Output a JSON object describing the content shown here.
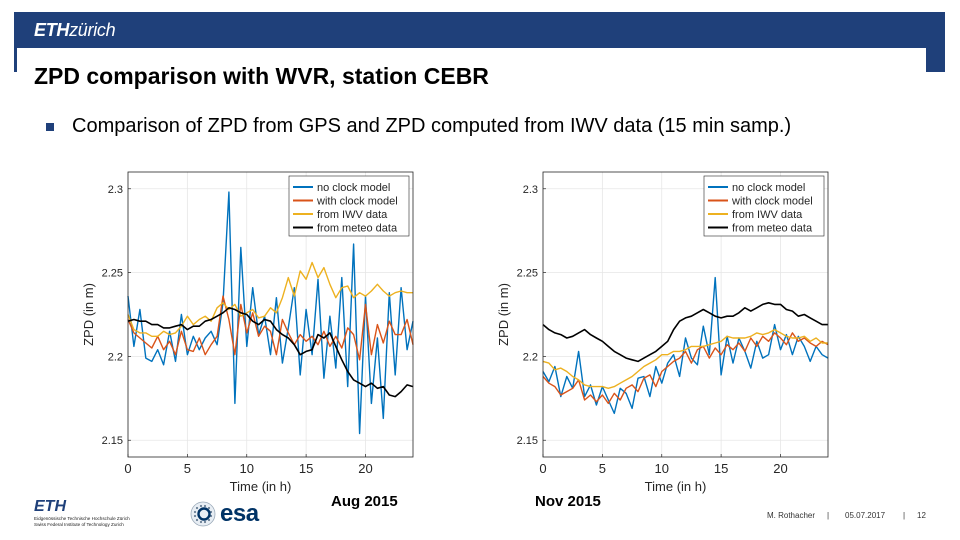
{
  "header": {
    "logo_eth": "ETH",
    "logo_zurich": "zürich",
    "bar_color": "#1F407A"
  },
  "slide": {
    "title": "ZPD comparison with WVR, station CEBR",
    "bullet": "Comparison of ZPD from GPS and ZPD computed from IWV data (15 min samp.)"
  },
  "captions": {
    "left": "Aug 2015",
    "right": "Nov 2015"
  },
  "footer": {
    "eth_logo": "ETH",
    "eth_line1": "Eidgenössische Technische Hochschule Zürich",
    "eth_line2": "Swiss Federal Institute of Technology Zurich",
    "esa_logo": "esa",
    "author": "M. Rothacher",
    "date": "05.07.2017",
    "page": "12",
    "separator": "|"
  },
  "chart_data": [
    {
      "type": "line",
      "title": "Aug 2015",
      "xlabel": "Time (in h)",
      "ylabel": "ZPD (in m)",
      "xlim": [
        0,
        24
      ],
      "ylim": [
        2.14,
        2.31
      ],
      "xticks": [
        0,
        5,
        10,
        15,
        20
      ],
      "yticks": [
        2.15,
        2.2,
        2.25,
        2.3
      ],
      "xtick_labels": [
        "0",
        "5",
        "10",
        "15",
        "20"
      ],
      "ytick_labels": [
        "2.15",
        "2.2",
        "2.25",
        "2.3"
      ],
      "grid": true,
      "legend": "top-right",
      "x": [
        0,
        0.5,
        1,
        1.5,
        2,
        2.5,
        3,
        3.5,
        4,
        4.5,
        5,
        5.5,
        6,
        6.5,
        7,
        7.5,
        8,
        8.5,
        9,
        9.5,
        10,
        10.5,
        11,
        11.5,
        12,
        12.5,
        13,
        13.5,
        14,
        14.5,
        15,
        15.5,
        16,
        16.5,
        17,
        17.5,
        18,
        18.5,
        19,
        19.5,
        20,
        20.5,
        21,
        21.5,
        22,
        22.5,
        23,
        23.5,
        24
      ],
      "series": [
        {
          "name": "no clock model",
          "color": "#0072BD",
          "values": [
            2.236,
            2.206,
            2.228,
            2.199,
            2.197,
            2.204,
            2.195,
            2.215,
            2.197,
            2.225,
            2.201,
            2.212,
            2.204,
            2.211,
            2.215,
            2.207,
            2.232,
            2.298,
            2.172,
            2.265,
            2.206,
            2.241,
            2.213,
            2.224,
            2.201,
            2.235,
            2.196,
            2.217,
            2.241,
            2.189,
            2.228,
            2.201,
            2.246,
            2.187,
            2.224,
            2.193,
            2.247,
            2.182,
            2.267,
            2.154,
            2.236,
            2.172,
            2.211,
            2.163,
            2.238,
            2.189,
            2.241,
            2.204,
            2.221
          ]
        },
        {
          "name": "with clock model",
          "color": "#D95319",
          "values": [
            2.222,
            2.214,
            2.211,
            2.208,
            2.205,
            2.212,
            2.204,
            2.209,
            2.201,
            2.215,
            2.204,
            2.203,
            2.211,
            2.201,
            2.207,
            2.212,
            2.236,
            2.222,
            2.201,
            2.231,
            2.214,
            2.226,
            2.212,
            2.218,
            2.215,
            2.201,
            2.222,
            2.214,
            2.207,
            2.213,
            2.209,
            2.212,
            2.207,
            2.215,
            2.206,
            2.212,
            2.205,
            2.217,
            2.213,
            2.198,
            2.231,
            2.201,
            2.219,
            2.208,
            2.221,
            2.213,
            2.213,
            2.222,
            2.207
          ]
        },
        {
          "name": "from IWV data",
          "color": "#EDB120",
          "values": [
            2.225,
            2.216,
            2.214,
            2.214,
            2.212,
            2.212,
            2.215,
            2.213,
            2.214,
            2.218,
            2.224,
            2.219,
            2.222,
            2.224,
            2.221,
            2.229,
            2.232,
            2.228,
            2.231,
            2.224,
            2.226,
            2.228,
            2.223,
            2.224,
            2.229,
            2.226,
            2.235,
            2.247,
            2.236,
            2.251,
            2.246,
            2.256,
            2.247,
            2.253,
            2.243,
            2.235,
            2.241,
            2.242,
            2.235,
            2.238,
            2.236,
            2.239,
            2.243,
            2.239,
            2.236,
            2.238,
            2.239,
            2.238,
            2.238
          ]
        },
        {
          "name": "from meteo data",
          "color": "#000000",
          "values": [
            2.221,
            2.222,
            2.221,
            2.221,
            2.219,
            2.219,
            2.217,
            2.217,
            2.218,
            2.219,
            2.216,
            2.218,
            2.218,
            2.221,
            2.222,
            2.224,
            2.226,
            2.229,
            2.228,
            2.226,
            2.225,
            2.221,
            2.219,
            2.222,
            2.221,
            2.216,
            2.213,
            2.211,
            2.207,
            2.201,
            2.203,
            2.204,
            2.213,
            2.211,
            2.214,
            2.206,
            2.198,
            2.191,
            2.186,
            2.184,
            2.182,
            2.184,
            2.181,
            2.182,
            2.177,
            2.176,
            2.179,
            2.183,
            2.182
          ]
        }
      ]
    },
    {
      "type": "line",
      "title": "Nov 2015",
      "xlabel": "Time (in h)",
      "ylabel": "ZPD (in m)",
      "xlim": [
        0,
        24
      ],
      "ylim": [
        2.14,
        2.31
      ],
      "xticks": [
        0,
        5,
        10,
        15,
        20
      ],
      "yticks": [
        2.15,
        2.2,
        2.25,
        2.3
      ],
      "xtick_labels": [
        "0",
        "5",
        "10",
        "15",
        "20"
      ],
      "ytick_labels": [
        "2.15",
        "2.2",
        "2.25",
        "2.3"
      ],
      "grid": true,
      "legend": "top-right",
      "x": [
        0,
        0.5,
        1,
        1.5,
        2,
        2.5,
        3,
        3.5,
        4,
        4.5,
        5,
        5.5,
        6,
        6.5,
        7,
        7.5,
        8,
        8.5,
        9,
        9.5,
        10,
        10.5,
        11,
        11.5,
        12,
        12.5,
        13,
        13.5,
        14,
        14.5,
        15,
        15.5,
        16,
        16.5,
        17,
        17.5,
        18,
        18.5,
        19,
        19.5,
        20,
        20.5,
        21,
        21.5,
        22,
        22.5,
        23,
        23.5,
        24
      ],
      "series": [
        {
          "name": "no clock model",
          "color": "#0072BD",
          "values": [
            2.191,
            2.185,
            2.194,
            2.176,
            2.188,
            2.181,
            2.203,
            2.176,
            2.183,
            2.171,
            2.182,
            2.174,
            2.166,
            2.181,
            2.178,
            2.169,
            2.187,
            2.188,
            2.176,
            2.194,
            2.184,
            2.196,
            2.201,
            2.188,
            2.211,
            2.199,
            2.195,
            2.218,
            2.201,
            2.247,
            2.189,
            2.212,
            2.196,
            2.211,
            2.203,
            2.193,
            2.209,
            2.199,
            2.201,
            2.219,
            2.204,
            2.213,
            2.201,
            2.212,
            2.206,
            2.197,
            2.206,
            2.201,
            2.199
          ]
        },
        {
          "name": "with clock model",
          "color": "#D95319",
          "values": [
            2.188,
            2.184,
            2.182,
            2.177,
            2.179,
            2.181,
            2.186,
            2.174,
            2.177,
            2.173,
            2.177,
            2.172,
            2.178,
            2.174,
            2.181,
            2.183,
            2.179,
            2.187,
            2.189,
            2.182,
            2.191,
            2.194,
            2.197,
            2.199,
            2.203,
            2.196,
            2.204,
            2.206,
            2.199,
            2.205,
            2.201,
            2.207,
            2.204,
            2.208,
            2.203,
            2.211,
            2.206,
            2.212,
            2.209,
            2.214,
            2.211,
            2.207,
            2.214,
            2.209,
            2.211,
            2.208,
            2.206,
            2.209,
            2.207
          ]
        },
        {
          "name": "from IWV data",
          "color": "#EDB120",
          "values": [
            2.197,
            2.196,
            2.192,
            2.193,
            2.191,
            2.188,
            2.186,
            2.183,
            2.182,
            2.182,
            2.182,
            2.181,
            2.182,
            2.184,
            2.186,
            2.188,
            2.191,
            2.194,
            2.196,
            2.198,
            2.201,
            2.201,
            2.203,
            2.203,
            2.204,
            2.206,
            2.206,
            2.206,
            2.207,
            2.208,
            2.209,
            2.212,
            2.211,
            2.211,
            2.211,
            2.212,
            2.214,
            2.213,
            2.214,
            2.216,
            2.214,
            2.212,
            2.211,
            2.211,
            2.212,
            2.209,
            2.211,
            2.208,
            2.208
          ]
        },
        {
          "name": "from meteo data",
          "color": "#000000",
          "values": [
            2.219,
            2.216,
            2.214,
            2.213,
            2.211,
            2.212,
            2.214,
            2.216,
            2.213,
            2.211,
            2.209,
            2.206,
            2.203,
            2.201,
            2.199,
            2.198,
            2.197,
            2.199,
            2.201,
            2.203,
            2.206,
            2.209,
            2.216,
            2.221,
            2.223,
            2.224,
            2.226,
            2.228,
            2.226,
            2.224,
            2.223,
            2.224,
            2.224,
            2.226,
            2.229,
            2.227,
            2.229,
            2.231,
            2.232,
            2.231,
            2.231,
            2.228,
            2.227,
            2.224,
            2.225,
            2.223,
            2.221,
            2.219,
            2.219
          ]
        }
      ]
    }
  ]
}
